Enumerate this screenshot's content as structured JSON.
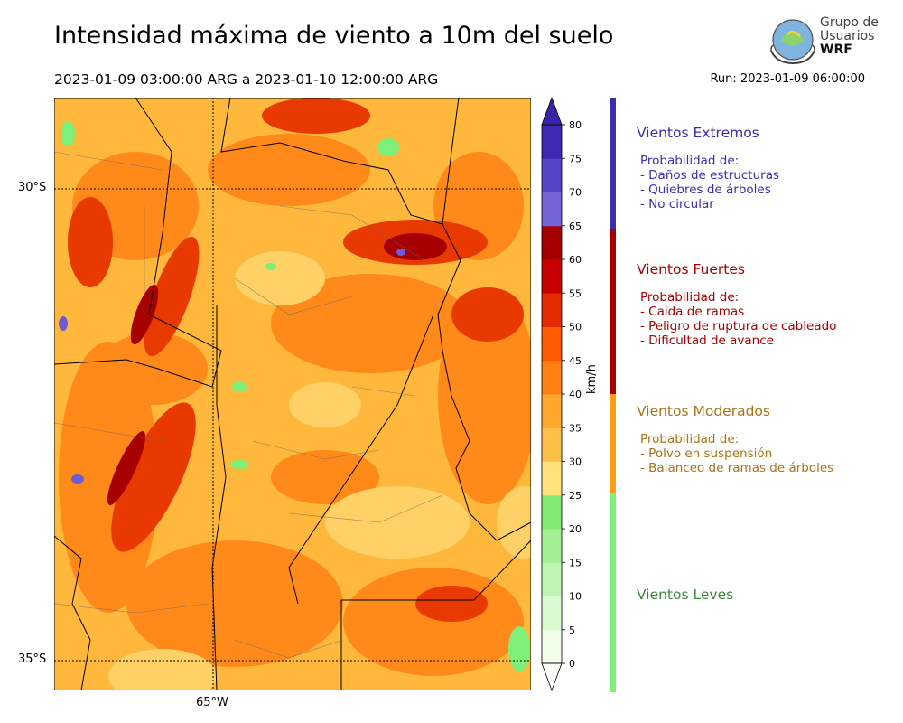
{
  "title": "Intensidad máxima de viento a 10m del suelo",
  "subtitle": "2023-01-09 03:00:00 ARG  a  2023-01-10 12:00:00 ARG",
  "run": "Run: 2023-01-09 06:00:00",
  "logo": {
    "line1": "Grupo de",
    "line2": "Usuarios",
    "line3": "WRF"
  },
  "map": {
    "lat_labels": [
      "30°S",
      "35°S"
    ],
    "lon_labels": [
      "65°W"
    ]
  },
  "colorbar": {
    "unit": "km/h",
    "ticks": [
      "0",
      "5",
      "10",
      "15",
      "20",
      "25",
      "30",
      "35",
      "40",
      "45",
      "50",
      "55",
      "60",
      "65",
      "70",
      "75",
      "80"
    ],
    "colors": [
      "#f2fde8",
      "#d9fad0",
      "#bff5b3",
      "#a3f094",
      "#82ea73",
      "#ffe27a",
      "#ffc04a",
      "#ffa62c",
      "#ff8010",
      "#ff5a00",
      "#e32a00",
      "#c70000",
      "#a40000",
      "#7466d8",
      "#5545c8",
      "#3c29b4"
    ]
  },
  "categories": [
    {
      "id": "extremos",
      "title": "Vientos Extremos",
      "color": "#3a2eb0",
      "lines": [
        "Probabilidad de:",
        "- Daños de estructuras",
        "- Quiebres de árboles",
        "- No circular"
      ]
    },
    {
      "id": "fuertes",
      "title": "Vientos Fuertes",
      "color": "#a80000",
      "lines": [
        "Probabilidad de:",
        "- Caida de ramas",
        "- Peligro de ruptura de cableado",
        "- Dificultad de avance"
      ]
    },
    {
      "id": "moderados",
      "title": "Vientos Moderados",
      "color": "#a8741a",
      "lines": [
        "Probabilidad de:",
        "- Polvo en suspensión",
        "- Balanceo de ramas de árboles"
      ]
    },
    {
      "id": "leves",
      "title": "Vientos Leves",
      "color": "#3a8a3a",
      "lines": []
    }
  ]
}
